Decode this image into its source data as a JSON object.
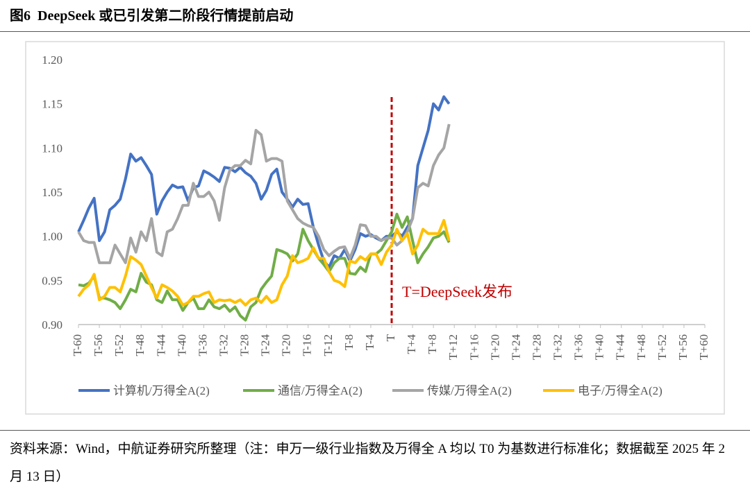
{
  "chart_data": {
    "type": "line",
    "title": "图6  DeepSeek 或已引发第二阶段行情提前启动",
    "source": "资料来源：Wind，中航证券研究所整理（注：申万一级行业指数及万得全 A 均以 T0 为基数进行标准化；数据截至 2025 年 2 月 13 日）",
    "annotation": {
      "text": "T=DeepSeek发布",
      "at": "T",
      "color": "#c00000"
    },
    "ylim": [
      0.9,
      1.2
    ],
    "yticks": [
      {
        "value": 0.9,
        "label": "0.90"
      },
      0.95,
      {
        "value": 1,
        "label": "1.00"
      },
      1.05,
      {
        "value": 1.1,
        "label": "1.10"
      },
      1.15,
      {
        "value": 1.2,
        "label": "1.20"
      }
    ],
    "categories": [
      "T-60",
      null,
      null,
      null,
      "T-56",
      null,
      null,
      null,
      "T-52",
      null,
      null,
      null,
      "T-48",
      null,
      null,
      null,
      "T-44",
      null,
      null,
      null,
      "T-40",
      null,
      null,
      null,
      "T-36",
      null,
      null,
      null,
      "T-32",
      null,
      null,
      null,
      "T-28",
      null,
      null,
      null,
      "T-24",
      null,
      null,
      null,
      "T-20",
      null,
      null,
      null,
      "T-16",
      null,
      null,
      null,
      "T-12",
      null,
      null,
      null,
      "T-8",
      null,
      null,
      null,
      "T-4",
      null,
      null,
      null,
      "T",
      null,
      null,
      null,
      "T+4",
      null,
      null,
      null,
      "T+8",
      null,
      null,
      null,
      "T+12",
      null,
      null,
      null,
      "T+16",
      null,
      null,
      null,
      "T+20",
      null,
      null,
      null,
      "T+24",
      null,
      null,
      null,
      "T+28",
      null,
      null,
      null,
      "T+32",
      null,
      null,
      null,
      "T+36",
      null,
      null,
      null,
      "T+40",
      null,
      null,
      null,
      "T+44",
      null,
      null,
      null,
      "T+48",
      null,
      null,
      null,
      "T+52",
      null,
      null,
      null,
      "T+56",
      null,
      null,
      null,
      "T+60"
    ],
    "series": [
      {
        "name": "计算机/万得全A(2)",
        "color": "#4472c4",
        "values": [
          1.005,
          1.018,
          1.032,
          1.043,
          0.995,
          1.005,
          1.03,
          1.035,
          1.042,
          1.065,
          1.093,
          1.085,
          1.089,
          1.08,
          1.07,
          1.025,
          1.04,
          1.05,
          1.058,
          1.055,
          1.056,
          1.04,
          1.055,
          1.057,
          1.074,
          1.071,
          1.067,
          1.062,
          1.078,
          1.077,
          1.073,
          1.078,
          1.072,
          1.068,
          1.06,
          1.042,
          1.052,
          1.07,
          1.076,
          1.05,
          1.042,
          1.033,
          1.042,
          1.036,
          1.037,
          1.01,
          0.99,
          0.972,
          0.965,
          0.978,
          0.975,
          0.985,
          0.972,
          0.985,
          1.003,
          1.0,
          1.002,
          0.998,
          0.995,
          1.0,
          1.0,
          1.005,
          1.0,
          1.01,
          1.02,
          1.08,
          1.1,
          1.12,
          1.15,
          1.143,
          1.158,
          1.15,
          null,
          null,
          null,
          null,
          null,
          null,
          null,
          null,
          null,
          null,
          null,
          null,
          null,
          null,
          null,
          null,
          null,
          null,
          null,
          null,
          null,
          null,
          null,
          null,
          null,
          null,
          null,
          null,
          null,
          null,
          null,
          null,
          null,
          null,
          null,
          null,
          null,
          null,
          null,
          null,
          null,
          null,
          null,
          null,
          null,
          null,
          null,
          null,
          null
        ]
      },
      {
        "name": "通信/万得全A(2)",
        "color": "#70ad47",
        "values": [
          0.945,
          0.944,
          0.947,
          0.955,
          0.93,
          0.93,
          0.928,
          0.925,
          0.918,
          0.928,
          0.94,
          0.937,
          0.958,
          0.948,
          0.945,
          0.928,
          0.925,
          0.938,
          0.928,
          0.928,
          0.916,
          0.925,
          0.93,
          0.918,
          0.918,
          0.928,
          0.92,
          0.918,
          0.922,
          0.915,
          0.92,
          0.91,
          0.905,
          0.92,
          0.925,
          0.94,
          0.948,
          0.955,
          0.985,
          0.983,
          0.98,
          0.972,
          0.98,
          1.008,
          0.995,
          0.985,
          0.975,
          0.968,
          0.96,
          0.97,
          0.975,
          0.975,
          0.958,
          0.957,
          0.965,
          0.96,
          0.98,
          0.98,
          0.985,
          0.995,
          1.005,
          1.025,
          1.01,
          1.022,
          0.995,
          0.97,
          0.98,
          0.988,
          0.998,
          1.0,
          1.005,
          0.993,
          null,
          null,
          null,
          null,
          null,
          null,
          null,
          null,
          null,
          null,
          null,
          null,
          null,
          null,
          null,
          null,
          null,
          null,
          null,
          null,
          null,
          null,
          null,
          null,
          null,
          null,
          null,
          null,
          null,
          null,
          null,
          null,
          null,
          null,
          null,
          null,
          null,
          null,
          null,
          null,
          null,
          null,
          null,
          null,
          null,
          null,
          null,
          null,
          null
        ]
      },
      {
        "name": "传媒/万得全A(2)",
        "color": "#a5a5a5",
        "values": [
          1.005,
          0.995,
          0.993,
          0.993,
          0.97,
          0.97,
          0.97,
          0.99,
          0.98,
          0.97,
          0.998,
          0.982,
          1.005,
          0.995,
          1.02,
          0.982,
          0.978,
          1.005,
          1.008,
          1.02,
          1.035,
          1.035,
          1.06,
          1.045,
          1.045,
          1.05,
          1.04,
          1.018,
          1.055,
          1.075,
          1.08,
          1.08,
          1.086,
          1.082,
          1.12,
          1.115,
          1.085,
          1.088,
          1.088,
          1.085,
          1.04,
          1.03,
          1.02,
          1.015,
          1.012,
          1.01,
          1.0,
          0.985,
          0.978,
          0.983,
          0.987,
          0.988,
          0.975,
          0.99,
          1.013,
          1.012,
          1.0,
          1.0,
          0.995,
          0.998,
          0.998,
          0.99,
          0.995,
          1.005,
          1.02,
          1.055,
          1.06,
          1.057,
          1.08,
          1.092,
          1.1,
          1.127,
          null,
          null,
          null,
          null,
          null,
          null,
          null,
          null,
          null,
          null,
          null,
          null,
          null,
          null,
          null,
          null,
          null,
          null,
          null,
          null,
          null,
          null,
          null,
          null,
          null,
          null,
          null,
          null,
          null,
          null,
          null,
          null,
          null,
          null,
          null,
          null,
          null,
          null,
          null,
          null,
          null,
          null,
          null,
          null,
          null,
          null,
          null,
          null,
          null
        ]
      },
      {
        "name": "电子/万得全A(2)",
        "color": "#ffc000",
        "values": [
          0.932,
          0.94,
          0.945,
          0.957,
          0.928,
          0.932,
          0.942,
          0.942,
          0.937,
          0.955,
          0.977,
          0.973,
          0.968,
          0.955,
          0.942,
          0.93,
          0.945,
          0.942,
          0.938,
          0.932,
          0.922,
          0.925,
          0.932,
          0.932,
          0.935,
          0.937,
          0.925,
          0.928,
          0.927,
          0.928,
          0.925,
          0.928,
          0.922,
          0.928,
          0.93,
          0.925,
          0.932,
          0.925,
          0.928,
          0.945,
          0.955,
          0.978,
          0.97,
          0.972,
          0.975,
          0.987,
          0.975,
          0.975,
          0.96,
          0.95,
          0.948,
          0.943,
          0.972,
          0.97,
          0.977,
          0.973,
          0.98,
          0.98,
          0.968,
          0.982,
          0.99,
          1.008,
          0.995,
          1.003,
          0.98,
          0.99,
          1.008,
          1.003,
          1.003,
          1.003,
          1.018,
          0.995,
          null,
          null,
          null,
          null,
          null,
          null,
          null,
          null,
          null,
          null,
          null,
          null,
          null,
          null,
          null,
          null,
          null,
          null,
          null,
          null,
          null,
          null,
          null,
          null,
          null,
          null,
          null,
          null,
          null,
          null,
          null,
          null,
          null,
          null,
          null,
          null,
          null,
          null,
          null,
          null,
          null,
          null,
          null,
          null,
          null,
          null,
          null,
          null,
          null
        ]
      }
    ]
  }
}
